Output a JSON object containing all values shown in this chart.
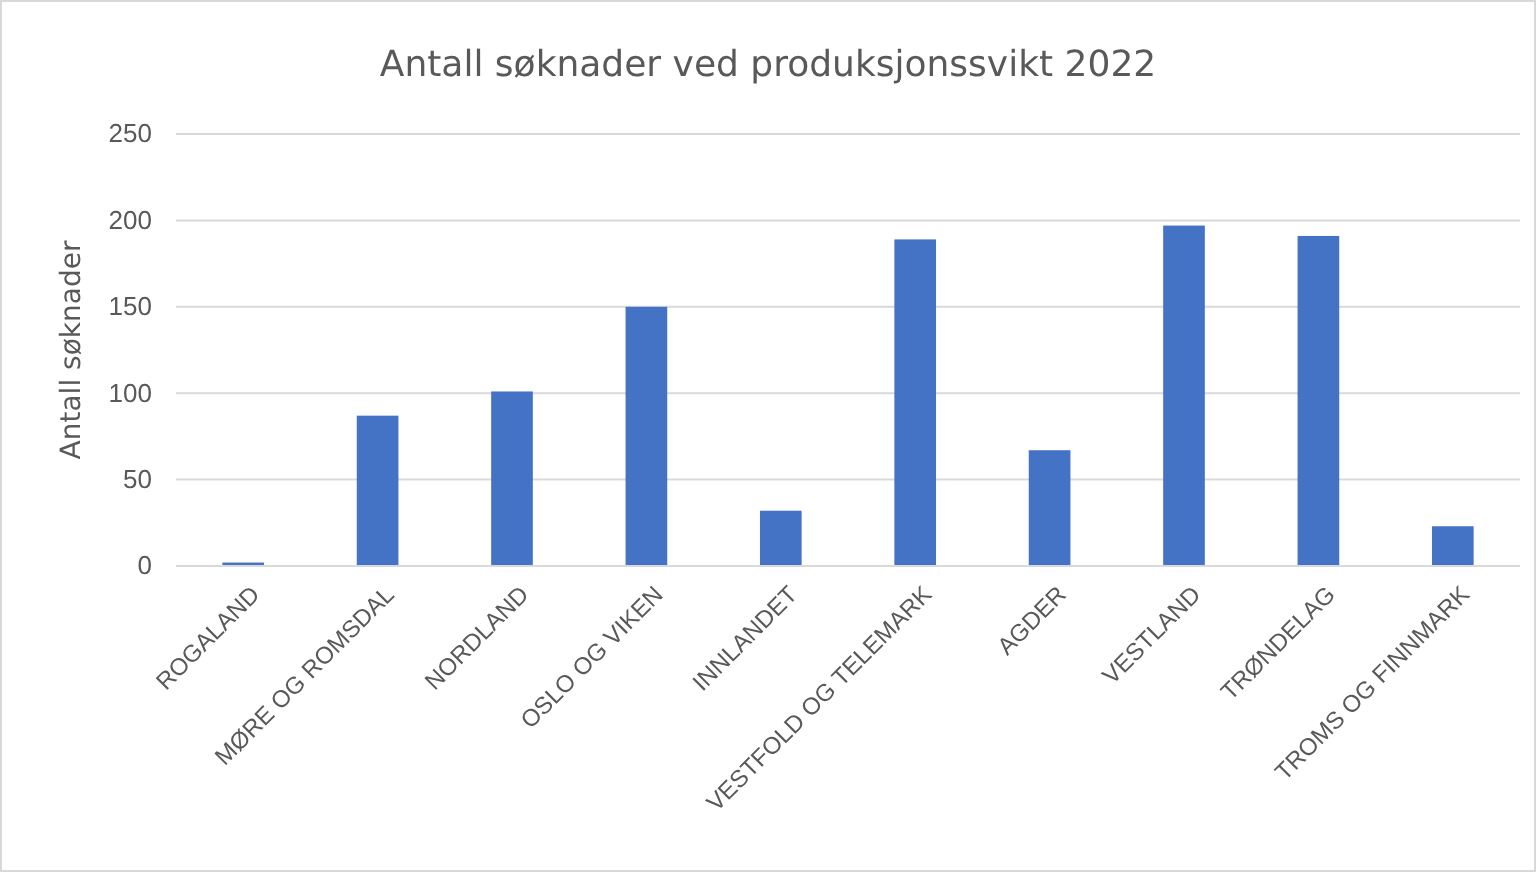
{
  "chart_data": {
    "type": "bar",
    "title": "Antall søknader ved produksjonssvikt 2022",
    "ylabel": "Antall søknader",
    "categories": [
      "ROGALAND",
      "MØRE OG ROMSDAL",
      "NORDLAND",
      "OSLO OG VIKEN",
      "INNLANDET",
      "VESTFOLD OG TELEMARK",
      "AGDER",
      "VESTLAND",
      "TRØNDELAG",
      "TROMS OG FINNMARK"
    ],
    "values": [
      2,
      87,
      101,
      150,
      32,
      189,
      67,
      197,
      191,
      23
    ],
    "color": "#4472c4",
    "ylim": [
      0,
      250
    ],
    "yticks": [
      0,
      50,
      100,
      150,
      200,
      250
    ],
    "grid": "y"
  }
}
